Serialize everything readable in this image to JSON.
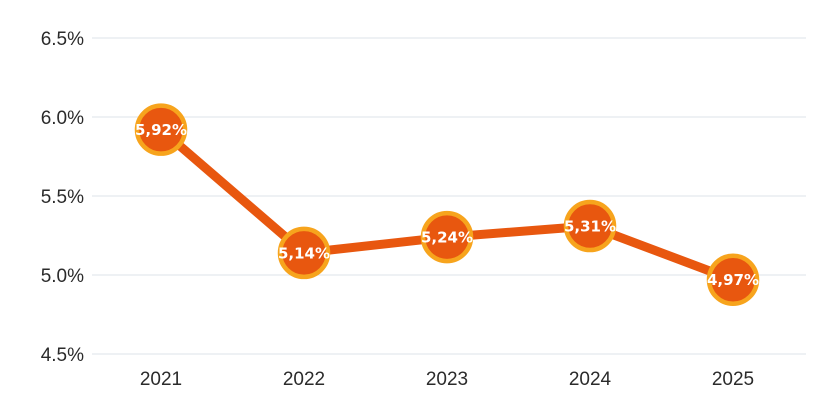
{
  "chart_data": {
    "type": "line",
    "categories": [
      "2021",
      "2022",
      "2023",
      "2024",
      "2025"
    ],
    "values": [
      5.92,
      5.14,
      5.24,
      5.31,
      4.97
    ],
    "data_labels": [
      "5,92%",
      "5,14%",
      "5,24%",
      "5,31%",
      "4,97%"
    ],
    "y_ticks": [
      {
        "value": 4.5,
        "label": "4.5%"
      },
      {
        "value": 5.0,
        "label": "5.0%"
      },
      {
        "value": 5.5,
        "label": "5.5%"
      },
      {
        "value": 6.0,
        "label": "6.0%"
      },
      {
        "value": 6.5,
        "label": "6.5%"
      }
    ],
    "ylim": [
      4.5,
      6.5
    ],
    "title": "",
    "xlabel": "",
    "ylabel": "",
    "grid": "horizontal",
    "legend": "none",
    "colors": {
      "line": "#e8570f",
      "marker_fill": "#e8570f",
      "marker_ring": "#f7a41d",
      "grid": "#dde3ea",
      "text": "#2b2b2b",
      "label_text": "#ffffff"
    }
  }
}
